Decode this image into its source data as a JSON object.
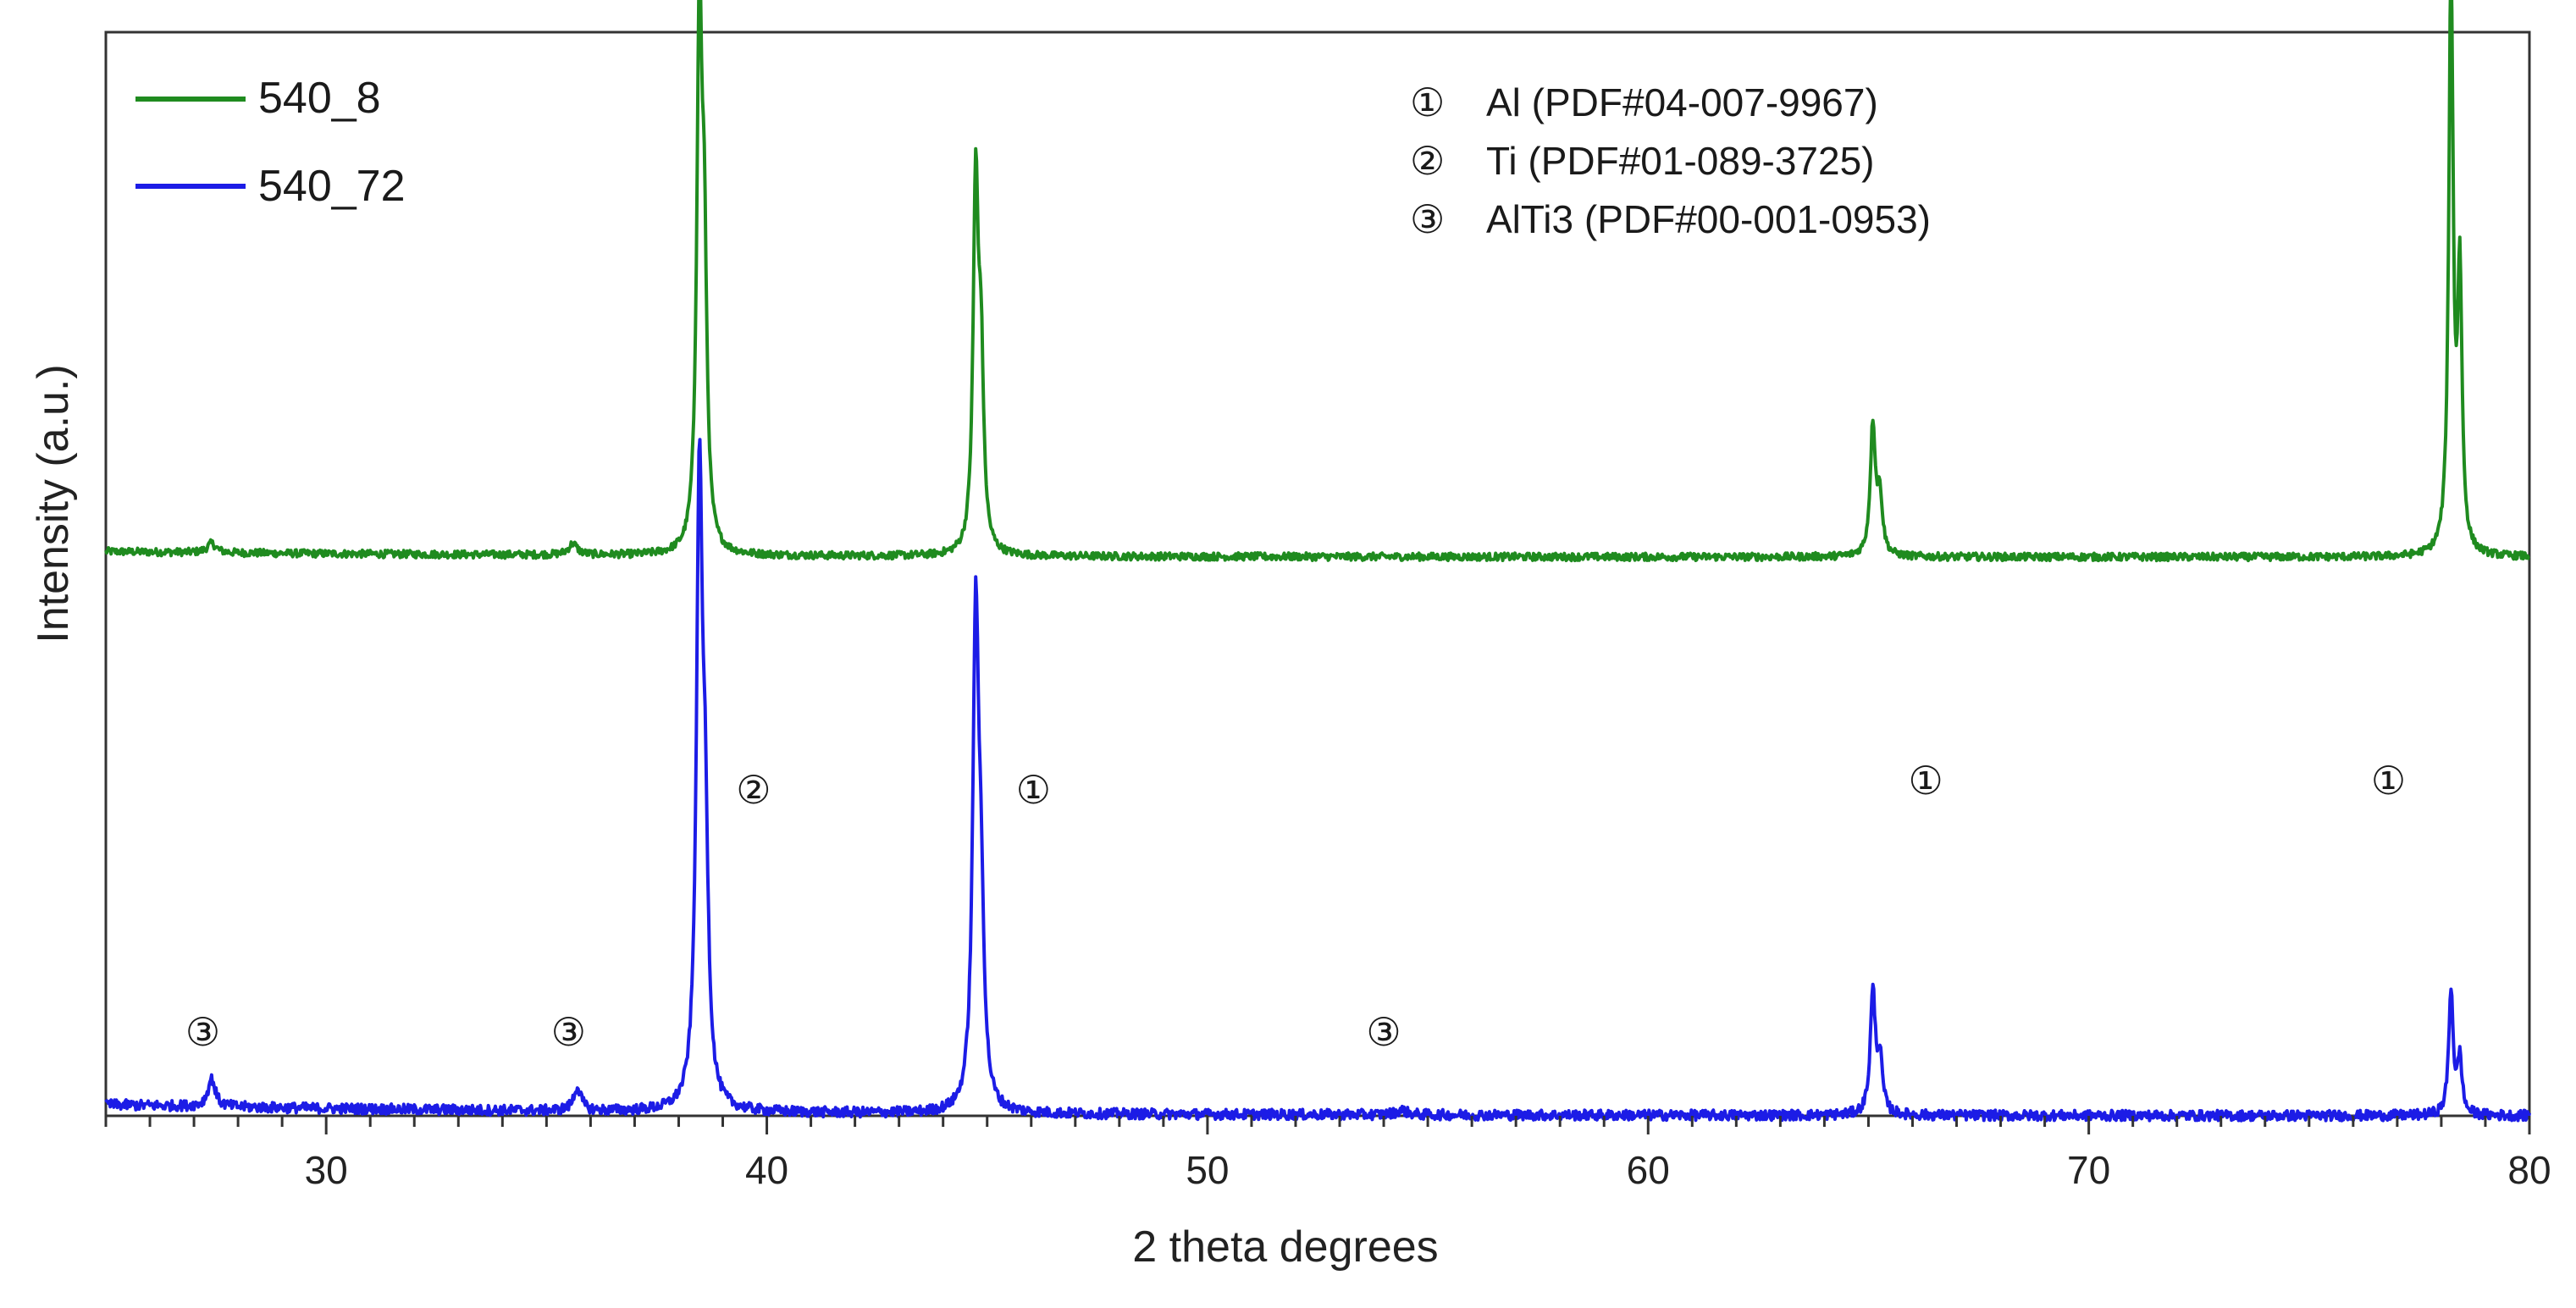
{
  "chart_data": {
    "type": "line",
    "xlabel": "2 theta degrees",
    "ylabel": "Intensity (a.u.)",
    "xlim": [
      25,
      80
    ],
    "x_major_ticks": [
      30,
      40,
      50,
      60,
      70,
      80
    ],
    "x_minor_step": 1,
    "y_ticks": "none",
    "legend_position": "top-left",
    "series": [
      {
        "name": "540_8",
        "color": "#1f8b1f",
        "baseline": 0.6,
        "peaks": [
          {
            "x": 27.4,
            "height": 0.01,
            "width": 0.12
          },
          {
            "x": 35.6,
            "height": 0.012,
            "width": 0.12
          },
          {
            "x": 38.47,
            "height": 0.56,
            "width": 0.07
          },
          {
            "x": 38.58,
            "height": 0.28,
            "width": 0.07
          },
          {
            "x": 44.74,
            "height": 0.39,
            "width": 0.07
          },
          {
            "x": 44.86,
            "height": 0.19,
            "width": 0.07
          },
          {
            "x": 65.1,
            "height": 0.14,
            "width": 0.07
          },
          {
            "x": 65.26,
            "height": 0.06,
            "width": 0.07
          },
          {
            "x": 78.22,
            "height": 0.62,
            "width": 0.06
          },
          {
            "x": 78.42,
            "height": 0.29,
            "width": 0.06
          }
        ]
      },
      {
        "name": "540_72",
        "color": "#1c1ce6",
        "baseline": 0.0,
        "peaks": [
          {
            "x": 27.4,
            "height": 0.03,
            "width": 0.1
          },
          {
            "x": 35.7,
            "height": 0.025,
            "width": 0.1
          },
          {
            "x": 38.47,
            "height": 0.66,
            "width": 0.08
          },
          {
            "x": 38.6,
            "height": 0.25,
            "width": 0.08
          },
          {
            "x": 44.74,
            "height": 0.52,
            "width": 0.08
          },
          {
            "x": 44.86,
            "height": 0.18,
            "width": 0.08
          },
          {
            "x": 54.4,
            "height": 0.005,
            "width": 0.15
          },
          {
            "x": 65.1,
            "height": 0.13,
            "width": 0.07
          },
          {
            "x": 65.26,
            "height": 0.055,
            "width": 0.07
          },
          {
            "x": 78.22,
            "height": 0.135,
            "width": 0.06
          },
          {
            "x": 78.42,
            "height": 0.06,
            "width": 0.06
          }
        ]
      }
    ],
    "phase_legend": [
      {
        "marker": "①",
        "label": "Al (PDF#04-007-9967)"
      },
      {
        "marker": "②",
        "label": "Ti (PDF#01-089-3725)"
      },
      {
        "marker": "③",
        "label": "AlTi3 (PDF#00-001-0953)"
      }
    ],
    "peak_markers": [
      {
        "text": "②",
        "x": 39.7,
        "y": 0.35
      },
      {
        "text": "①",
        "x": 46.05,
        "y": 0.35
      },
      {
        "text": "①",
        "x": 66.3,
        "y": 0.36
      },
      {
        "text": "①",
        "x": 76.8,
        "y": 0.36
      },
      {
        "text": "③",
        "x": 27.2,
        "y": 0.09
      },
      {
        "text": "③",
        "x": 35.5,
        "y": 0.09
      },
      {
        "text": "③",
        "x": 54.0,
        "y": 0.09
      }
    ]
  }
}
